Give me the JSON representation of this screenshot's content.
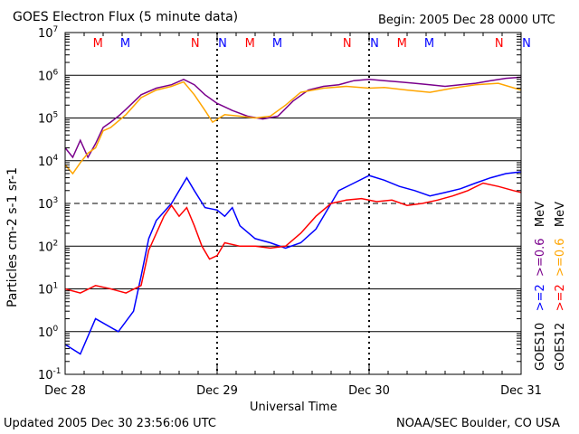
{
  "header": {
    "title": "GOES Electron Flux (5 minute data)",
    "begin": "Begin: 2005 Dec 28 0000 UTC"
  },
  "footer": {
    "updated": "Updated 2005 Dec 30 23:56:06 UTC",
    "source": "NOAA/SEC Boulder, CO USA"
  },
  "colors": {
    "goes10_2mev": "#0000ff",
    "goes10_06mev": "#7a008c",
    "goes12_2mev": "#ff0000",
    "goes12_06mev": "#ffa500",
    "marker_m": "#ff0000",
    "marker_n_red": "#ff0000",
    "marker_n_blue": "#0000ff"
  },
  "chart_data": {
    "type": "line",
    "title": "GOES Electron Flux (5 minute data)",
    "xlabel": "Universal Time",
    "ylabel": "Particles cm-2 s-1 sr-1",
    "yscale": "log",
    "ylim": [
      0.1,
      10000000
    ],
    "xlim": [
      0,
      3
    ],
    "x_ticks": [
      {
        "x": 0,
        "label": "Dec 28"
      },
      {
        "x": 1,
        "label": "Dec 29"
      },
      {
        "x": 2,
        "label": "Dec 30"
      },
      {
        "x": 3,
        "label": "Dec 31"
      }
    ],
    "y_ticks": [
      {
        "exp": -1,
        "label": "10-1"
      },
      {
        "exp": 0,
        "label": "100"
      },
      {
        "exp": 1,
        "label": "101"
      },
      {
        "exp": 2,
        "label": "102"
      },
      {
        "exp": 3,
        "label": "103"
      },
      {
        "exp": 4,
        "label": "104"
      },
      {
        "exp": 5,
        "label": "105"
      },
      {
        "exp": 6,
        "label": "106"
      },
      {
        "exp": 7,
        "label": "107"
      }
    ],
    "threshold_line": 1000,
    "top_markers": [
      {
        "x": 0.18,
        "label": "M",
        "color": "#ff0000"
      },
      {
        "x": 0.36,
        "label": "M",
        "color": "#0000ff"
      },
      {
        "x": 0.82,
        "label": "N",
        "color": "#ff0000"
      },
      {
        "x": 1.0,
        "label": "N",
        "color": "#0000ff"
      },
      {
        "x": 1.18,
        "label": "M",
        "color": "#ff0000"
      },
      {
        "x": 1.36,
        "label": "M",
        "color": "#0000ff"
      },
      {
        "x": 1.82,
        "label": "N",
        "color": "#ff0000"
      },
      {
        "x": 2.0,
        "label": "N",
        "color": "#0000ff"
      },
      {
        "x": 2.18,
        "label": "M",
        "color": "#ff0000"
      },
      {
        "x": 2.36,
        "label": "M",
        "color": "#0000ff"
      },
      {
        "x": 2.82,
        "label": "N",
        "color": "#ff0000"
      },
      {
        "x": 3.0,
        "label": "N",
        "color": "#0000ff"
      }
    ],
    "legend": [
      {
        "label": "GOES10",
        "parts": [
          {
            "text": ">=2",
            "color": "#0000ff"
          },
          {
            "text": ">=0.6",
            "color": "#7a008c"
          },
          {
            "text": "MeV",
            "color": "#000000"
          }
        ]
      },
      {
        "label": "GOES12",
        "parts": [
          {
            "text": ">=2",
            "color": "#ff0000"
          },
          {
            "text": ">=0.6",
            "color": "#ffa500"
          },
          {
            "text": "MeV",
            "color": "#000000"
          }
        ]
      }
    ],
    "series": [
      {
        "key": "goes10_06",
        "color": "#7a008c",
        "points": [
          [
            0,
            20000
          ],
          [
            0.05,
            12000
          ],
          [
            0.1,
            30000
          ],
          [
            0.15,
            12000
          ],
          [
            0.2,
            25000
          ],
          [
            0.25,
            60000
          ],
          [
            0.3,
            80000
          ],
          [
            0.35,
            110000
          ],
          [
            0.4,
            160000
          ],
          [
            0.5,
            350000
          ],
          [
            0.6,
            500000
          ],
          [
            0.7,
            600000
          ],
          [
            0.78,
            800000
          ],
          [
            0.85,
            600000
          ],
          [
            0.92,
            350000
          ],
          [
            1.0,
            220000
          ],
          [
            1.1,
            150000
          ],
          [
            1.2,
            110000
          ],
          [
            1.3,
            95000
          ],
          [
            1.4,
            110000
          ],
          [
            1.5,
            250000
          ],
          [
            1.6,
            450000
          ],
          [
            1.7,
            550000
          ],
          [
            1.8,
            600000
          ],
          [
            1.9,
            750000
          ],
          [
            2.0,
            800000
          ],
          [
            2.1,
            750000
          ],
          [
            2.2,
            700000
          ],
          [
            2.3,
            650000
          ],
          [
            2.4,
            600000
          ],
          [
            2.5,
            550000
          ],
          [
            2.6,
            600000
          ],
          [
            2.7,
            650000
          ],
          [
            2.8,
            750000
          ],
          [
            2.9,
            850000
          ],
          [
            3.0,
            900000
          ]
        ]
      },
      {
        "key": "goes12_06",
        "color": "#ffa500",
        "points": [
          [
            0,
            8000
          ],
          [
            0.05,
            5000
          ],
          [
            0.1,
            9000
          ],
          [
            0.15,
            15000
          ],
          [
            0.2,
            20000
          ],
          [
            0.25,
            50000
          ],
          [
            0.3,
            60000
          ],
          [
            0.4,
            120000
          ],
          [
            0.5,
            300000
          ],
          [
            0.6,
            450000
          ],
          [
            0.7,
            550000
          ],
          [
            0.78,
            700000
          ],
          [
            0.85,
            350000
          ],
          [
            0.92,
            150000
          ],
          [
            0.97,
            80000
          ],
          [
            1.05,
            120000
          ],
          [
            1.15,
            110000
          ],
          [
            1.25,
            100000
          ],
          [
            1.35,
            110000
          ],
          [
            1.45,
            200000
          ],
          [
            1.55,
            400000
          ],
          [
            1.7,
            500000
          ],
          [
            1.85,
            550000
          ],
          [
            2.0,
            500000
          ],
          [
            2.1,
            520000
          ],
          [
            2.25,
            450000
          ],
          [
            2.4,
            400000
          ],
          [
            2.55,
            500000
          ],
          [
            2.7,
            600000
          ],
          [
            2.85,
            650000
          ],
          [
            3.0,
            450000
          ]
        ]
      },
      {
        "key": "goes10_2",
        "color": "#0000ff",
        "points": [
          [
            0,
            0.5
          ],
          [
            0.1,
            0.3
          ],
          [
            0.2,
            2
          ],
          [
            0.35,
            1
          ],
          [
            0.45,
            3
          ],
          [
            0.5,
            20
          ],
          [
            0.55,
            150
          ],
          [
            0.6,
            400
          ],
          [
            0.7,
            1000
          ],
          [
            0.8,
            4000
          ],
          [
            0.85,
            2000
          ],
          [
            0.92,
            800
          ],
          [
            1.0,
            700
          ],
          [
            1.05,
            500
          ],
          [
            1.1,
            800
          ],
          [
            1.15,
            300
          ],
          [
            1.25,
            150
          ],
          [
            1.35,
            120
          ],
          [
            1.45,
            90
          ],
          [
            1.55,
            120
          ],
          [
            1.65,
            250
          ],
          [
            1.8,
            2000
          ],
          [
            1.9,
            3000
          ],
          [
            2.0,
            4500
          ],
          [
            2.1,
            3500
          ],
          [
            2.2,
            2500
          ],
          [
            2.3,
            2000
          ],
          [
            2.4,
            1500
          ],
          [
            2.5,
            1800
          ],
          [
            2.6,
            2200
          ],
          [
            2.7,
            3000
          ],
          [
            2.8,
            4000
          ],
          [
            2.9,
            5000
          ],
          [
            3.0,
            5500
          ]
        ]
      },
      {
        "key": "goes12_2",
        "color": "#ff0000",
        "points": [
          [
            0,
            10
          ],
          [
            0.1,
            8
          ],
          [
            0.2,
            12
          ],
          [
            0.3,
            10
          ],
          [
            0.4,
            8
          ],
          [
            0.5,
            12
          ],
          [
            0.55,
            80
          ],
          [
            0.6,
            200
          ],
          [
            0.65,
            500
          ],
          [
            0.7,
            900
          ],
          [
            0.75,
            500
          ],
          [
            0.8,
            800
          ],
          [
            0.85,
            300
          ],
          [
            0.9,
            100
          ],
          [
            0.95,
            50
          ],
          [
            1.0,
            60
          ],
          [
            1.05,
            120
          ],
          [
            1.15,
            100
          ],
          [
            1.25,
            100
          ],
          [
            1.35,
            90
          ],
          [
            1.45,
            100
          ],
          [
            1.55,
            200
          ],
          [
            1.65,
            500
          ],
          [
            1.75,
            1000
          ],
          [
            1.85,
            1200
          ],
          [
            1.95,
            1300
          ],
          [
            2.05,
            1100
          ],
          [
            2.15,
            1200
          ],
          [
            2.25,
            900
          ],
          [
            2.35,
            1000
          ],
          [
            2.45,
            1200
          ],
          [
            2.55,
            1500
          ],
          [
            2.65,
            2000
          ],
          [
            2.75,
            3000
          ],
          [
            2.85,
            2500
          ],
          [
            2.95,
            2000
          ],
          [
            3.0,
            1800
          ]
        ]
      }
    ]
  }
}
